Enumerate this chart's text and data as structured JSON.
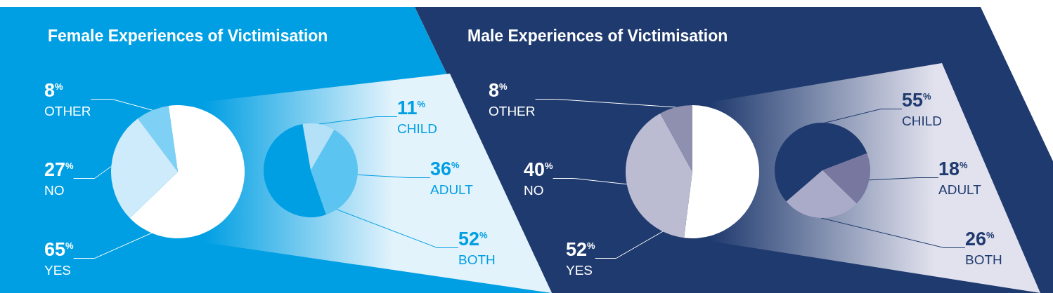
{
  "chart_data": [
    {
      "type": "pie",
      "title": "Female Experiences of Victimisation",
      "categories": [
        "OTHER",
        "NO",
        "YES"
      ],
      "values": [
        8,
        27,
        65
      ],
      "value_labels": [
        "8$^{%}$",
        "27$^{%}$",
        "65$^{%}$"
      ],
      "colors": [
        "#7fd0f5",
        "#cdebfb",
        "#ffffff"
      ]
    },
    {
      "type": "pie",
      "categories": [
        "CHILD",
        "ADULT",
        "BOTH"
      ],
      "values": [
        11,
        36,
        52
      ],
      "value_labels": [
        "11$^{%}$",
        "36$^{%}$",
        "52$^{%}$"
      ],
      "colors": [
        "#b5e1f8",
        "#5bc4f1",
        "#009fe3"
      ]
    },
    {
      "type": "pie",
      "title": "Male Experiences of Victimisation",
      "categories": [
        "OTHER",
        "NO",
        "YES"
      ],
      "values": [
        8,
        40,
        52
      ],
      "value_labels": [
        "8$^{%}$",
        "40$^{%}$",
        "52$^{%}$"
      ],
      "colors": [
        "#8f8fb0",
        "#bbbbd2",
        "#ffffff"
      ]
    },
    {
      "type": "pie",
      "categories": [
        "CHILD",
        "ADULT",
        "BOTH"
      ],
      "values": [
        55,
        18,
        26
      ],
      "value_labels": [
        "55$^{%}$",
        "18$^{%}$",
        "26$^{%}$"
      ],
      "colors": [
        "#1f3a6e",
        "#77779f",
        "#aaabc9"
      ]
    }
  ]
}
